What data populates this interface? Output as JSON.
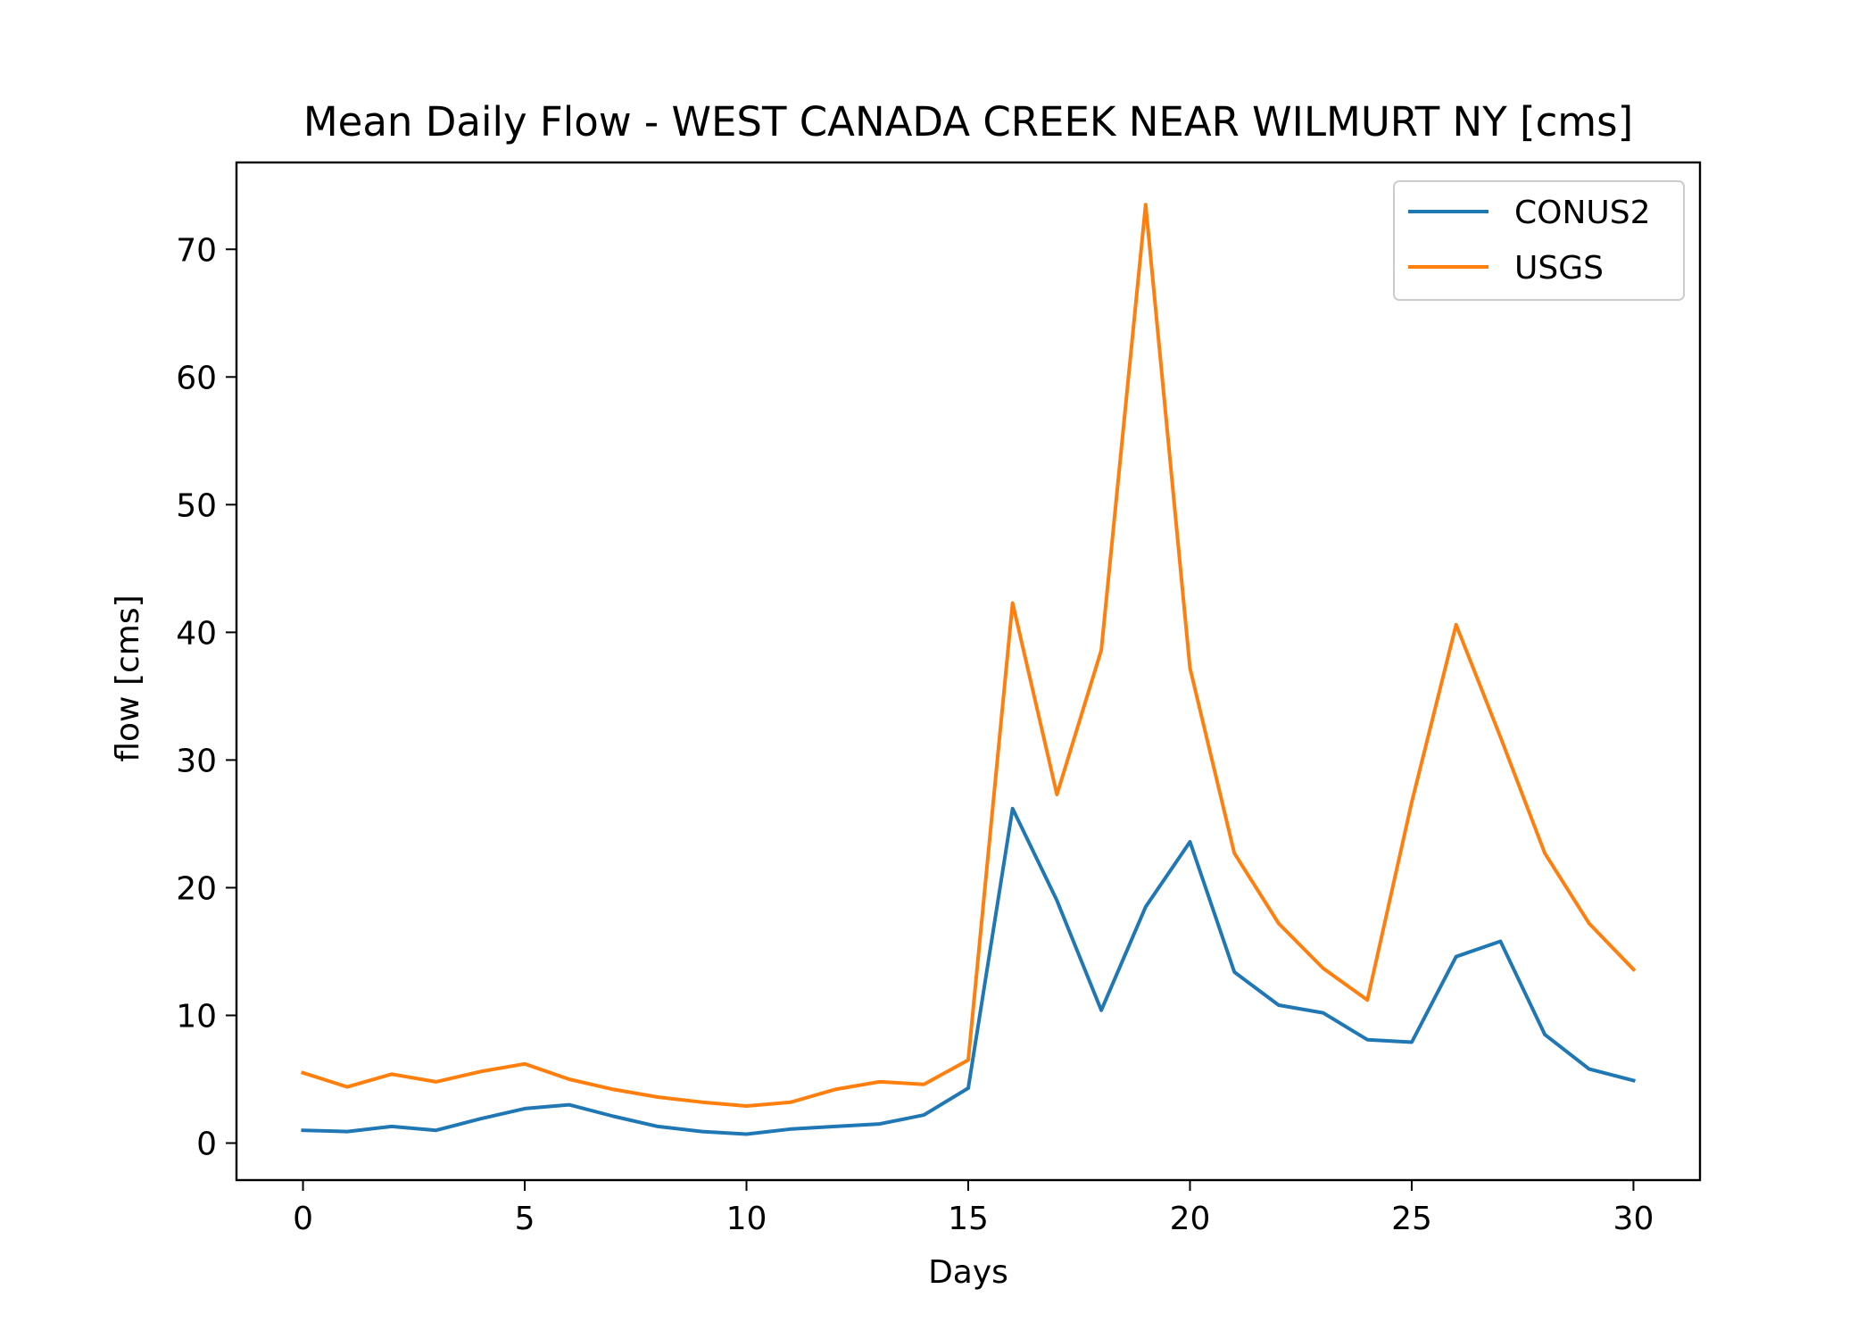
{
  "chart_data": {
    "type": "line",
    "title": "Mean Daily Flow - WEST CANADA CREEK NEAR WILMURT NY [cms]",
    "xlabel": "Days",
    "ylabel": "flow [cms]",
    "xlim": [
      -1.5,
      31.5
    ],
    "ylim": [
      -2.9,
      76.8
    ],
    "xticks": [
      0,
      5,
      10,
      15,
      20,
      25,
      30
    ],
    "yticks": [
      0,
      10,
      20,
      30,
      40,
      50,
      60,
      70
    ],
    "grid": false,
    "legend": "upper right",
    "x": [
      0,
      1,
      2,
      3,
      4,
      5,
      6,
      7,
      8,
      9,
      10,
      11,
      12,
      13,
      14,
      15,
      16,
      17,
      18,
      19,
      20,
      21,
      22,
      23,
      24,
      25,
      26,
      27,
      28,
      29,
      30
    ],
    "series": [
      {
        "name": "CONUS2",
        "color": "#1f77b4",
        "values": [
          1.0,
          0.9,
          1.3,
          1.0,
          1.9,
          2.7,
          3.0,
          2.1,
          1.3,
          0.9,
          0.7,
          1.1,
          1.3,
          1.5,
          2.2,
          4.3,
          26.2,
          19.0,
          10.4,
          18.5,
          23.6,
          13.4,
          10.8,
          10.2,
          8.1,
          7.9,
          14.6,
          15.8,
          8.5,
          5.8,
          4.9
        ]
      },
      {
        "name": "USGS",
        "color": "#ff7f0e",
        "values": [
          5.5,
          4.4,
          5.4,
          4.8,
          5.6,
          6.2,
          5.0,
          4.2,
          3.6,
          3.2,
          2.9,
          3.2,
          4.2,
          4.8,
          4.6,
          6.5,
          42.3,
          27.3,
          38.6,
          73.5,
          37.2,
          22.7,
          17.2,
          13.7,
          11.2,
          26.7,
          40.6,
          31.8,
          22.7,
          17.2,
          13.6
        ]
      }
    ]
  }
}
